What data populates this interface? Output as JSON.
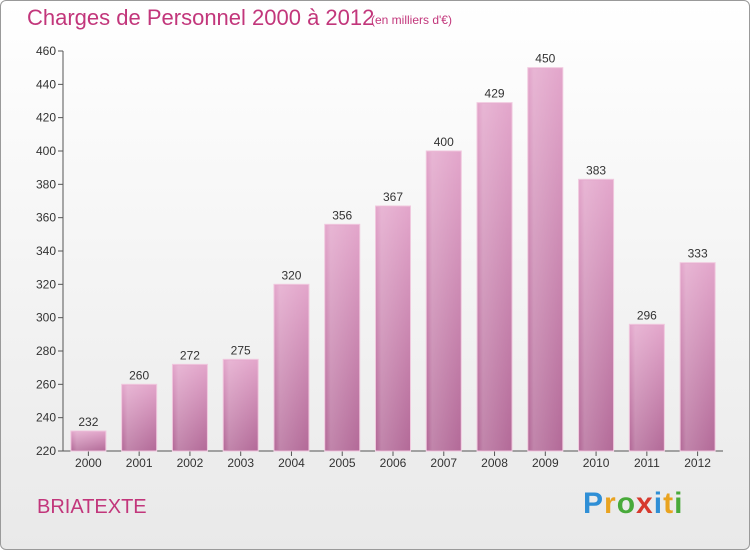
{
  "chart_data": {
    "type": "bar",
    "title": "Charges de Personnel 2000 à 2012",
    "subtitle": "(en milliers d'€)",
    "categories": [
      "2000",
      "2001",
      "2002",
      "2003",
      "2004",
      "2005",
      "2006",
      "2007",
      "2008",
      "2009",
      "2010",
      "2011",
      "2012"
    ],
    "values": [
      232,
      260,
      272,
      275,
      320,
      356,
      367,
      400,
      429,
      450,
      383,
      296,
      333
    ],
    "ylim": [
      220,
      460
    ],
    "yticks": [
      220,
      240,
      260,
      280,
      300,
      320,
      340,
      360,
      380,
      400,
      420,
      440,
      460
    ],
    "grid": false,
    "bar_color_top": "#e3a6cb",
    "bar_color_bottom": "#b36a98"
  },
  "footer": {
    "place": "BRIATEXTE",
    "logo": [
      {
        "ch": "P",
        "color": "#2f8fd6"
      },
      {
        "ch": "r",
        "color": "#e9a320"
      },
      {
        "ch": "o",
        "color": "#48aa3a"
      },
      {
        "ch": "x",
        "color": "#d73a2e"
      },
      {
        "ch": "i",
        "color": "#2f8fd6"
      },
      {
        "ch": "t",
        "color": "#e9a320"
      },
      {
        "ch": "i",
        "color": "#48aa3a"
      }
    ]
  }
}
